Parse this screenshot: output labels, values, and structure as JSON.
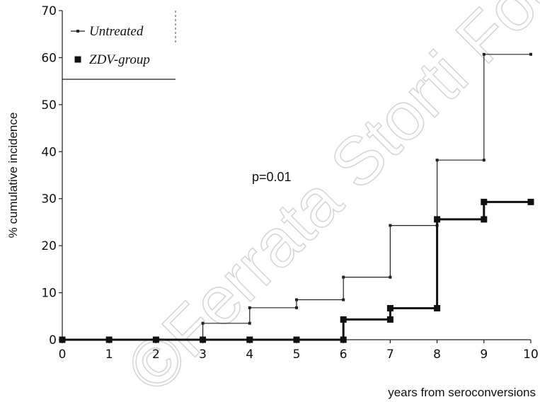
{
  "watermark": "©Ferrata Storti Fou",
  "chart_data": {
    "type": "line",
    "step": true,
    "xlabel": "years from seroconversions",
    "ylabel": "% cumulative incidence",
    "xlim": [
      0,
      10
    ],
    "ylim": [
      0,
      70
    ],
    "xticks": [
      0,
      1,
      2,
      3,
      4,
      5,
      6,
      7,
      8,
      9,
      10
    ],
    "yticks": [
      0,
      10,
      20,
      30,
      40,
      50,
      60,
      70
    ],
    "grid": false,
    "legend_position": "top-left",
    "annotation": "p=0.01",
    "series": [
      {
        "name": "Untreated",
        "color": "#222222",
        "marker": "small-square",
        "x": [
          0,
          1,
          2,
          3,
          3,
          4,
          4,
          5,
          5,
          6,
          6,
          7,
          7,
          8,
          8,
          9,
          9,
          10
        ],
        "y": [
          0,
          0,
          0,
          0,
          3.5,
          3.5,
          6.8,
          6.8,
          8.5,
          8.5,
          13.3,
          13.3,
          24.3,
          24.3,
          38.2,
          38.2,
          60.7,
          60.7
        ]
      },
      {
        "name": "ZDV-group",
        "color": "#111111",
        "marker": "large-square",
        "x": [
          0,
          1,
          2,
          3,
          4,
          5,
          6,
          6,
          7,
          7,
          8,
          8,
          9,
          9,
          10
        ],
        "y": [
          0,
          0,
          0,
          0,
          0,
          0,
          0,
          4.3,
          4.3,
          6.7,
          6.7,
          25.6,
          25.6,
          29.3,
          29.3
        ]
      }
    ]
  }
}
